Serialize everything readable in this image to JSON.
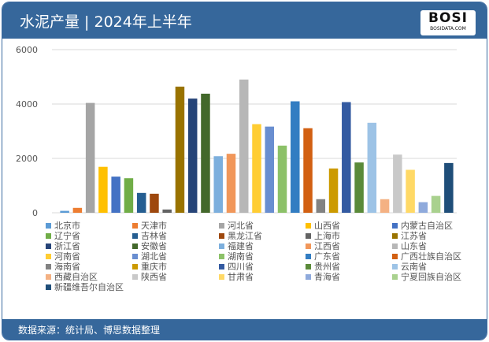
{
  "title": "水泥产量 | 2024年上半年",
  "logo": {
    "text": "BOSI",
    "sub": "BOSIDATA.COM"
  },
  "source": "数据来源：统计局、博思数据整理",
  "chart_data": {
    "type": "bar",
    "title": "",
    "ylim": [
      0,
      6000
    ],
    "yticks": [
      "0",
      "2000",
      "4000",
      "6000"
    ],
    "grid": true,
    "legend_position": "bottom",
    "categories": [
      "北京市",
      "天津市",
      "河北省",
      "山西省",
      "内蒙古自治区",
      "辽宁省",
      "吉林省",
      "黑龙江省",
      "上海市",
      "江苏省",
      "浙江省",
      "安徽省",
      "福建省",
      "江西省",
      "山东省",
      "河南省",
      "湖北省",
      "湖南省",
      "广东省",
      "广西壮族自治区",
      "海南省",
      "重庆市",
      "四川省",
      "贵州省",
      "云南省",
      "西藏自治区",
      "陕西省",
      "甘肃省",
      "青海省",
      "宁夏回族自治区",
      "新疆维吾尔自治区"
    ],
    "values": [
      70,
      180,
      4040,
      1690,
      1330,
      1270,
      730,
      700,
      120,
      4640,
      4200,
      4380,
      2080,
      2170,
      4900,
      3260,
      3170,
      2470,
      4100,
      3110,
      500,
      1630,
      4070,
      1850,
      3310,
      500,
      2140,
      1580,
      390,
      620,
      1830
    ],
    "colors": [
      "#5B9BD5",
      "#ED7D31",
      "#A5A5A5",
      "#FFC000",
      "#4472C4",
      "#70AD47",
      "#255E91",
      "#9E480E",
      "#636363",
      "#997300",
      "#264478",
      "#43682B",
      "#7CAFDD",
      "#F1975A",
      "#B7B7B7",
      "#FFCD33",
      "#698ED0",
      "#8CC168",
      "#327DC2",
      "#D26012",
      "#828282",
      "#CC9A00",
      "#335AA1",
      "#5A8A39",
      "#9DC3E6",
      "#F4B183",
      "#C9C9C9",
      "#FFD966",
      "#8FAADC",
      "#A9D18E",
      "#1F4E79"
    ]
  }
}
